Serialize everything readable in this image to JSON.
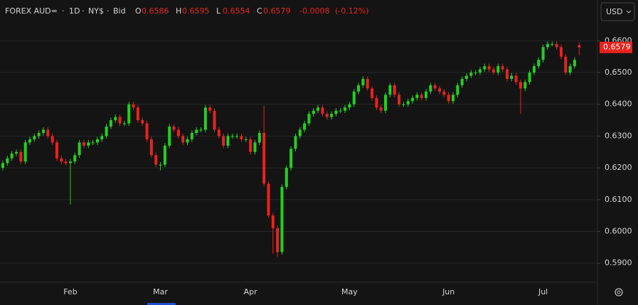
{
  "header": {
    "symbol": "FOREX AUD=",
    "interval": "1D",
    "session": "NY$",
    "side": "Bid",
    "ohlc_labels": [
      "O",
      "H",
      "L",
      "C"
    ],
    "change": -0.0008,
    "change_pct": "(-0.12%)"
  },
  "currency": "USD",
  "chart_data": {
    "type": "candlestick",
    "up_color": "#22d11f",
    "down_color": "#e8231e",
    "grid": true,
    "ylim": [
      0.584,
      0.665
    ],
    "yticks": [
      {
        "value": 0.59,
        "label": "0.5900"
      },
      {
        "value": 0.6,
        "label": "0.6000"
      },
      {
        "value": 0.61,
        "label": "0.6100"
      },
      {
        "value": 0.62,
        "label": "0.6200"
      },
      {
        "value": 0.63,
        "label": "0.6300"
      },
      {
        "value": 0.64,
        "label": "0.6400"
      },
      {
        "value": 0.65,
        "label": "0.6500"
      },
      {
        "value": 0.66,
        "label": "0.6600"
      }
    ],
    "categories": [
      null,
      null,
      null,
      null,
      null,
      null,
      null,
      null,
      null,
      null,
      null,
      null,
      null,
      null,
      null,
      "Feb",
      null,
      null,
      null,
      null,
      null,
      null,
      null,
      null,
      null,
      null,
      null,
      null,
      null,
      null,
      null,
      null,
      null,
      null,
      null,
      "Mar",
      null,
      null,
      null,
      null,
      null,
      null,
      null,
      null,
      null,
      null,
      null,
      null,
      null,
      null,
      null,
      null,
      null,
      null,
      null,
      "Apr",
      null,
      null,
      null,
      null,
      null,
      null,
      null,
      null,
      null,
      null,
      null,
      null,
      null,
      null,
      null,
      null,
      null,
      null,
      null,
      null,
      null,
      "May",
      null,
      null,
      null,
      null,
      null,
      null,
      null,
      null,
      null,
      null,
      null,
      null,
      null,
      null,
      null,
      null,
      null,
      null,
      null,
      null,
      null,
      "Jun",
      null,
      null,
      null,
      null,
      null,
      null,
      null,
      null,
      null,
      null,
      null,
      null,
      null,
      null,
      null,
      null,
      null,
      null,
      null,
      null,
      "Jul",
      null,
      null,
      null,
      null,
      null,
      null,
      null,
      null
    ],
    "open": [
      0.62,
      0.6215,
      0.623,
      0.6245,
      0.625,
      0.622,
      0.628,
      0.629,
      0.63,
      0.631,
      0.632,
      0.63,
      0.628,
      0.623,
      0.622,
      0.6215,
      0.622,
      0.624,
      0.628,
      0.627,
      0.628,
      0.628,
      0.629,
      0.63,
      0.633,
      0.635,
      0.636,
      0.634,
      0.634,
      0.64,
      0.639,
      0.635,
      0.634,
      0.629,
      0.624,
      0.621,
      0.621,
      0.627,
      0.633,
      0.632,
      0.63,
      0.628,
      0.629,
      0.631,
      0.632,
      0.632,
      0.639,
      0.638,
      0.632,
      0.63,
      0.627,
      0.63,
      0.63,
      0.63,
      0.629,
      0.629,
      0.625,
      0.628,
      0.631,
      0.615,
      0.605,
      0.601,
      0.5935,
      0.614,
      0.62,
      0.626,
      0.63,
      0.632,
      0.634,
      0.637,
      0.638,
      0.639,
      0.637,
      0.636,
      0.637,
      0.638,
      0.638,
      0.639,
      0.64,
      0.644,
      0.646,
      0.648,
      0.645,
      0.642,
      0.639,
      0.638,
      0.643,
      0.646,
      0.643,
      0.64,
      0.64,
      0.641,
      0.642,
      0.643,
      0.642,
      0.644,
      0.646,
      0.645,
      0.644,
      0.643,
      0.641,
      0.643,
      0.646,
      0.648,
      0.649,
      0.65,
      0.65,
      0.651,
      0.652,
      0.651,
      0.65,
      0.652,
      0.651,
      0.648,
      0.649,
      0.647,
      0.645,
      0.647,
      0.65,
      0.652,
      0.654,
      0.658,
      0.659,
      0.659,
      0.658,
      0.655,
      0.65,
      0.652,
      0.6586
    ],
    "high": [
      0.6223,
      0.6238,
      0.6253,
      0.6258,
      0.6258,
      0.6288,
      0.6298,
      0.6308,
      0.6318,
      0.6328,
      0.6328,
      0.6308,
      0.6288,
      0.6238,
      0.6228,
      0.6228,
      0.6248,
      0.6288,
      0.6288,
      0.6288,
      0.6288,
      0.6298,
      0.6308,
      0.6338,
      0.6358,
      0.6368,
      0.6368,
      0.6348,
      0.6408,
      0.6408,
      0.6398,
      0.6358,
      0.6348,
      0.6298,
      0.6248,
      0.6218,
      0.6278,
      0.6338,
      0.6338,
      0.6328,
      0.6308,
      0.6298,
      0.6318,
      0.6328,
      0.6328,
      0.6398,
      0.6398,
      0.6388,
      0.6328,
      0.6308,
      0.6308,
      0.6308,
      0.6308,
      0.6308,
      0.6298,
      0.6298,
      0.6288,
      0.6318,
      0.6395,
      0.6158,
      0.6058,
      0.6018,
      0.6148,
      0.6208,
      0.6268,
      0.6308,
      0.6328,
      0.6348,
      0.6378,
      0.6388,
      0.6398,
      0.6398,
      0.6378,
      0.6378,
      0.6388,
      0.6388,
      0.6398,
      0.6408,
      0.6448,
      0.6468,
      0.6488,
      0.6488,
      0.6458,
      0.6428,
      0.6398,
      0.6438,
      0.6468,
      0.6468,
      0.6438,
      0.6408,
      0.6418,
      0.6428,
      0.6438,
      0.6438,
      0.6448,
      0.6468,
      0.6468,
      0.6458,
      0.6448,
      0.6438,
      0.6438,
      0.6468,
      0.6488,
      0.6498,
      0.6508,
      0.6508,
      0.6518,
      0.6528,
      0.6528,
      0.6518,
      0.6528,
      0.6528,
      0.6518,
      0.6498,
      0.6498,
      0.6478,
      0.6478,
      0.6508,
      0.6528,
      0.6548,
      0.6588,
      0.6598,
      0.6598,
      0.6598,
      0.6588,
      0.6558,
      0.6528,
      0.6548,
      0.6595
    ],
    "low": [
      0.6192,
      0.6207,
      0.6222,
      0.6237,
      0.6212,
      0.6212,
      0.6272,
      0.6282,
      0.6292,
      0.6302,
      0.6292,
      0.6272,
      0.6222,
      0.6212,
      0.6207,
      0.6085,
      0.6212,
      0.6232,
      0.6262,
      0.6262,
      0.6272,
      0.6272,
      0.6282,
      0.6292,
      0.6322,
      0.6342,
      0.6332,
      0.6332,
      0.6332,
      0.6382,
      0.6342,
      0.6332,
      0.6282,
      0.6232,
      0.6202,
      0.6192,
      0.6202,
      0.6262,
      0.6312,
      0.6292,
      0.6272,
      0.6272,
      0.6282,
      0.6302,
      0.6312,
      0.6312,
      0.6372,
      0.6312,
      0.6292,
      0.6262,
      0.6262,
      0.6292,
      0.6292,
      0.6282,
      0.6282,
      0.6242,
      0.6242,
      0.6272,
      0.6142,
      0.6042,
      0.593,
      0.592,
      0.5927,
      0.6132,
      0.6192,
      0.6252,
      0.6292,
      0.6312,
      0.6332,
      0.6362,
      0.6372,
      0.6362,
      0.6352,
      0.6352,
      0.6362,
      0.6372,
      0.6372,
      0.6382,
      0.6392,
      0.6432,
      0.6452,
      0.6442,
      0.6412,
      0.6382,
      0.6372,
      0.6372,
      0.6422,
      0.6422,
      0.6392,
      0.6392,
      0.6392,
      0.6402,
      0.6412,
      0.6412,
      0.6412,
      0.6432,
      0.6442,
      0.6432,
      0.6422,
      0.6402,
      0.6402,
      0.6422,
      0.6452,
      0.6472,
      0.6482,
      0.6492,
      0.6492,
      0.6502,
      0.6502,
      0.6492,
      0.6492,
      0.6502,
      0.6472,
      0.6472,
      0.6462,
      0.637,
      0.6442,
      0.6462,
      0.6492,
      0.6512,
      0.6532,
      0.6572,
      0.6582,
      0.6572,
      0.6542,
      0.6492,
      0.6492,
      0.6512,
      0.6554
    ],
    "close": [
      0.6215,
      0.623,
      0.6245,
      0.625,
      0.622,
      0.628,
      0.629,
      0.63,
      0.631,
      0.632,
      0.63,
      0.628,
      0.623,
      0.622,
      0.6215,
      0.622,
      0.624,
      0.628,
      0.627,
      0.628,
      0.628,
      0.629,
      0.63,
      0.633,
      0.635,
      0.636,
      0.634,
      0.634,
      0.64,
      0.639,
      0.635,
      0.634,
      0.629,
      0.624,
      0.621,
      0.621,
      0.627,
      0.633,
      0.632,
      0.63,
      0.628,
      0.629,
      0.631,
      0.632,
      0.632,
      0.639,
      0.638,
      0.632,
      0.63,
      0.627,
      0.63,
      0.63,
      0.63,
      0.629,
      0.629,
      0.625,
      0.628,
      0.631,
      0.615,
      0.605,
      0.601,
      0.5935,
      0.614,
      0.62,
      0.626,
      0.63,
      0.632,
      0.634,
      0.637,
      0.638,
      0.639,
      0.637,
      0.636,
      0.637,
      0.638,
      0.638,
      0.639,
      0.64,
      0.644,
      0.646,
      0.648,
      0.645,
      0.642,
      0.639,
      0.638,
      0.643,
      0.646,
      0.643,
      0.64,
      0.64,
      0.641,
      0.642,
      0.643,
      0.642,
      0.644,
      0.646,
      0.645,
      0.644,
      0.643,
      0.641,
      0.643,
      0.646,
      0.648,
      0.649,
      0.65,
      0.65,
      0.651,
      0.652,
      0.651,
      0.65,
      0.652,
      0.651,
      0.648,
      0.649,
      0.647,
      0.645,
      0.647,
      0.65,
      0.652,
      0.654,
      0.658,
      0.659,
      0.659,
      0.658,
      0.655,
      0.65,
      0.652,
      0.654,
      0.6579
    ]
  }
}
